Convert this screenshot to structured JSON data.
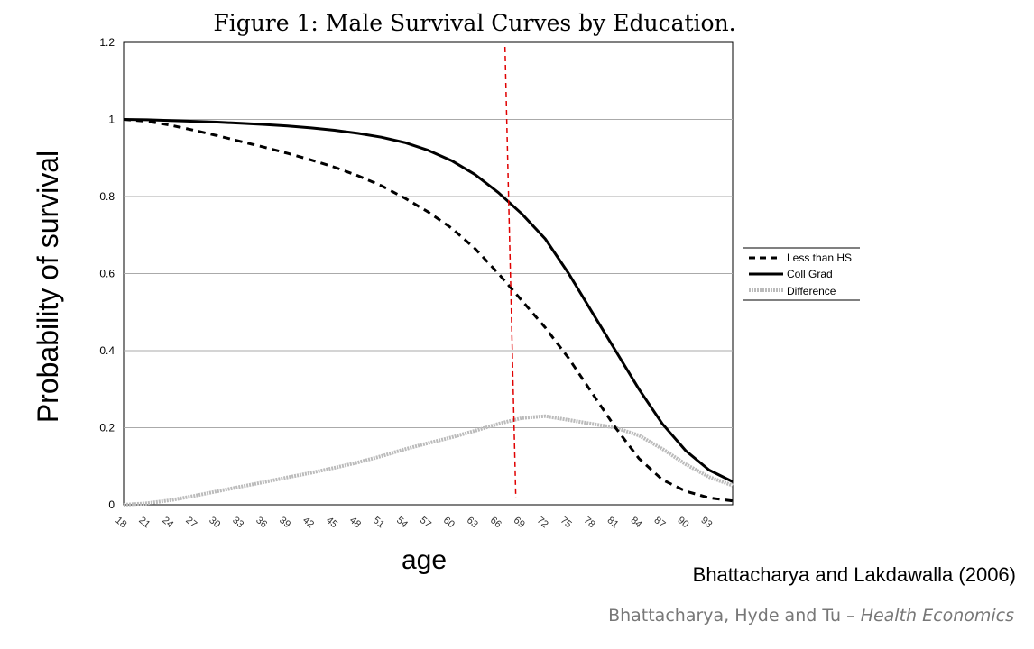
{
  "figure": {
    "title": "Figure 1: Male Survival Curves by Education."
  },
  "citations": {
    "primary": "Bhattacharya and Lakdawalla (2006)",
    "authors": "Bhattacharya, Hyde and Tu – ",
    "journal": "Health Economics"
  },
  "colors": {
    "less_than_hs": "#000000",
    "coll_grad": "#000000",
    "difference": "#bbbbbb",
    "marker_line": "#e00000",
    "gridline": "#aaaaaa"
  },
  "chart_data": {
    "type": "line",
    "title": "Figure 1: Male Survival Curves by Education.",
    "xlabel": "age",
    "ylabel": "Probability of survival",
    "x_ticks": [
      "18",
      "21",
      "24",
      "27",
      "30",
      "33",
      "36",
      "39",
      "42",
      "45",
      "48",
      "51",
      "54",
      "57",
      "60",
      "63",
      "66",
      "69",
      "72",
      "75",
      "78",
      "81",
      "84",
      "87",
      "90",
      "93"
    ],
    "yticks": [
      "0",
      "0.2",
      "0.4",
      "0.6",
      "0.8",
      "1",
      "1.2"
    ],
    "ylim": [
      0,
      1.2
    ],
    "xlim": [
      18,
      96
    ],
    "grid": "horizontal",
    "legend_position": "right",
    "vertical_marker_age": 68,
    "series": [
      {
        "name": "Less than HS",
        "style": "dashed",
        "x": [
          18,
          21,
          24,
          27,
          30,
          33,
          36,
          39,
          42,
          45,
          48,
          51,
          54,
          57,
          60,
          63,
          66,
          69,
          72,
          75,
          78,
          81,
          84,
          87,
          90,
          93,
          96
        ],
        "values": [
          1.0,
          0.995,
          0.985,
          0.972,
          0.958,
          0.943,
          0.928,
          0.912,
          0.895,
          0.876,
          0.854,
          0.828,
          0.796,
          0.76,
          0.718,
          0.665,
          0.6,
          0.53,
          0.46,
          0.38,
          0.29,
          0.2,
          0.12,
          0.065,
          0.035,
          0.018,
          0.01
        ]
      },
      {
        "name": "Coll Grad",
        "style": "solid",
        "x": [
          18,
          21,
          24,
          27,
          30,
          33,
          36,
          39,
          42,
          45,
          48,
          51,
          54,
          57,
          60,
          63,
          66,
          69,
          72,
          75,
          78,
          81,
          84,
          87,
          90,
          93,
          96
        ],
        "values": [
          1.0,
          0.999,
          0.997,
          0.995,
          0.993,
          0.99,
          0.987,
          0.983,
          0.978,
          0.972,
          0.964,
          0.954,
          0.94,
          0.92,
          0.893,
          0.857,
          0.81,
          0.755,
          0.69,
          0.6,
          0.5,
          0.4,
          0.3,
          0.21,
          0.14,
          0.09,
          0.06
        ]
      },
      {
        "name": "Difference",
        "style": "gray",
        "x": [
          18,
          21,
          24,
          27,
          30,
          33,
          36,
          39,
          42,
          45,
          48,
          51,
          54,
          57,
          60,
          63,
          66,
          69,
          72,
          75,
          78,
          81,
          84,
          87,
          90,
          93,
          96
        ],
        "values": [
          0.0,
          0.004,
          0.012,
          0.023,
          0.035,
          0.047,
          0.059,
          0.071,
          0.083,
          0.096,
          0.11,
          0.126,
          0.144,
          0.16,
          0.175,
          0.192,
          0.21,
          0.225,
          0.23,
          0.22,
          0.21,
          0.2,
          0.18,
          0.145,
          0.105,
          0.072,
          0.05
        ]
      }
    ]
  }
}
